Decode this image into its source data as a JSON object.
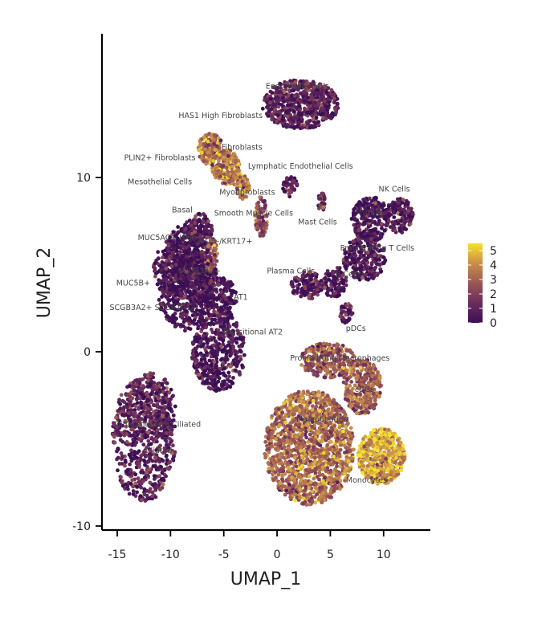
{
  "chart_data": {
    "type": "scatter",
    "xlabel": "UMAP_1",
    "ylabel": "UMAP_2",
    "xlim": [
      -16.5,
      14.5
    ],
    "ylim": [
      -10.5,
      18.3
    ],
    "x_ticks": [
      -15,
      -10,
      -5,
      0,
      5,
      10
    ],
    "y_ticks": [
      -10,
      0,
      10
    ],
    "colorbar": {
      "range": [
        0,
        5.5
      ],
      "ticks": [
        0,
        1,
        2,
        3,
        4,
        5
      ]
    },
    "colors": {
      "low": "#3b0f55",
      "mid": "#b87a4e",
      "high": "#f3e22e"
    },
    "clusters": [
      {
        "name": "Ciliated",
        "label_x": -11.2,
        "label_y": -5.8,
        "cx": -12.5,
        "cy": -5.0,
        "rx": 3.0,
        "ry": 3.6,
        "value": 0.9,
        "n": 600
      },
      {
        "name": "Differentiating Ciliated",
        "label_x": -11.2,
        "label_y": -4.3,
        "cx": -11.8,
        "cy": -3.2,
        "rx": 2.3,
        "ry": 2.0,
        "value": 0.9,
        "n": 250
      },
      {
        "name": "Transitional AT2",
        "label_x": -2.3,
        "label_y": 1.0,
        "cx": -5.5,
        "cy": 0.0,
        "rx": 2.5,
        "ry": 2.3,
        "value": 0.3,
        "n": 450
      },
      {
        "name": "AT1",
        "label_x": -3.4,
        "label_y": 3.0,
        "cx": -5.3,
        "cy": 3.0,
        "rx": 1.5,
        "ry": 1.3,
        "value": 0.3,
        "n": 180
      },
      {
        "name": "SCGB3A2+ SCGB1A1+",
        "label_x": -11.6,
        "label_y": 2.4,
        "cx": -8.5,
        "cy": 3.2,
        "rx": 2.6,
        "ry": 2.0,
        "value": 0.3,
        "n": 400
      },
      {
        "name": "SCGB3A2+",
        "label_x": -7.3,
        "label_y": 4.5,
        "cx": -7.3,
        "cy": 4.5,
        "rx": 1.6,
        "ry": 1.3,
        "value": 0.4,
        "n": 220
      },
      {
        "name": "MUC5B+",
        "label_x": -13.5,
        "label_y": 3.8,
        "cx": -9.8,
        "cy": 4.8,
        "rx": 1.8,
        "ry": 1.6,
        "value": 0.3,
        "n": 260
      },
      {
        "name": "MUC5AC+ High",
        "label_x": -10.3,
        "label_y": 6.4,
        "cx": -8.5,
        "cy": 6.0,
        "rx": 1.8,
        "ry": 1.3,
        "value": 0.4,
        "n": 220
      },
      {
        "name": "Basal",
        "label_x": -8.9,
        "label_y": 8.0,
        "cx": -7.4,
        "cy": 7.0,
        "rx": 1.3,
        "ry": 1.0,
        "value": 0.5,
        "n": 140
      },
      {
        "name": "KRT5-/KRT17+",
        "label_x": -4.9,
        "label_y": 6.2,
        "cx": -6.2,
        "cy": 5.6,
        "rx": 0.6,
        "ry": 1.0,
        "value": 2.5,
        "n": 80
      },
      {
        "name": "PLIN2+ Fibroblasts",
        "label_x": -11.0,
        "label_y": 11.0,
        "cx": -6.5,
        "cy": 11.6,
        "rx": 0.9,
        "ry": 0.9,
        "value": 3.2,
        "n": 110
      },
      {
        "name": "HAS1 High Fibroblasts",
        "label_x": -5.3,
        "label_y": 13.4,
        "cx": -6.0,
        "cy": 11.8,
        "rx": 0.8,
        "ry": 0.8,
        "value": 3.0,
        "n": 70
      },
      {
        "name": "Fibroblasts",
        "label_x": -3.3,
        "label_y": 11.6,
        "cx": -4.8,
        "cy": 10.6,
        "rx": 1.3,
        "ry": 1.0,
        "value": 3.6,
        "n": 200
      },
      {
        "name": "Mesothelial Cells",
        "label_x": -11.0,
        "label_y": 9.6,
        "cx": -3.8,
        "cy": 10.0,
        "rx": 0.5,
        "ry": 0.5,
        "value": 3.5,
        "n": 40
      },
      {
        "name": "Myofibroblasts",
        "label_x": -2.8,
        "label_y": 9.0,
        "cx": -3.2,
        "cy": 9.4,
        "rx": 0.6,
        "ry": 0.7,
        "value": 3.4,
        "n": 60
      },
      {
        "name": "Smooth Muscle Cells",
        "label_x": -2.2,
        "label_y": 7.8,
        "cx": -1.5,
        "cy": 7.7,
        "rx": 0.6,
        "ry": 1.2,
        "value": 2.2,
        "n": 80
      },
      {
        "name": "Endothelial Cells",
        "label_x": 1.9,
        "label_y": 15.1,
        "cx": 2.2,
        "cy": 14.2,
        "rx": 3.6,
        "ry": 1.4,
        "value": 0.9,
        "n": 650
      },
      {
        "name": "Lymphatic Endothelial Cells",
        "label_x": 2.2,
        "label_y": 10.5,
        "cx": 1.2,
        "cy": 9.5,
        "rx": 0.7,
        "ry": 0.6,
        "value": 0.5,
        "n": 45
      },
      {
        "name": "Mast Cells",
        "label_x": 3.8,
        "label_y": 7.3,
        "cx": 4.2,
        "cy": 8.6,
        "rx": 0.4,
        "ry": 0.5,
        "value": 1.5,
        "n": 30
      },
      {
        "name": "NK Cells",
        "label_x": 11.0,
        "label_y": 9.2,
        "cx": 11.5,
        "cy": 7.8,
        "rx": 1.3,
        "ry": 1.0,
        "value": 0.5,
        "n": 140
      },
      {
        "name": "T Cells",
        "label_x": 8.8,
        "label_y": 7.8,
        "cx": 8.8,
        "cy": 7.6,
        "rx": 1.8,
        "ry": 1.3,
        "value": 0.4,
        "n": 250
      },
      {
        "name": "Proliferating T Cells",
        "label_x": 9.4,
        "label_y": 5.8,
        "cx": 8.2,
        "cy": 5.4,
        "rx": 2.0,
        "ry": 1.3,
        "value": 0.4,
        "n": 240
      },
      {
        "name": "Plasma Cells",
        "label_x": 1.3,
        "label_y": 4.5,
        "cx": 2.8,
        "cy": 3.8,
        "rx": 1.5,
        "ry": 0.8,
        "value": 0.4,
        "n": 130
      },
      {
        "name": "B Cells",
        "label_x": 6.7,
        "label_y": 4.3,
        "cx": 5.4,
        "cy": 4.0,
        "rx": 1.2,
        "ry": 0.9,
        "value": 0.4,
        "n": 100
      },
      {
        "name": "pDCs",
        "label_x": 7.4,
        "label_y": 1.2,
        "cx": 6.5,
        "cy": 2.2,
        "rx": 0.6,
        "ry": 0.6,
        "value": 0.7,
        "n": 40
      },
      {
        "name": "Proliferating Macrophages",
        "label_x": 5.9,
        "label_y": -0.5,
        "cx": 4.8,
        "cy": -0.5,
        "rx": 2.6,
        "ry": 1.0,
        "value": 2.6,
        "n": 260
      },
      {
        "name": "cDCs",
        "label_x": 8.2,
        "label_y": -2.3,
        "cx": 8.0,
        "cy": -2.0,
        "rx": 1.8,
        "ry": 1.6,
        "value": 3.0,
        "n": 300
      },
      {
        "name": "Macrophages",
        "label_x": 4.2,
        "label_y": -4.0,
        "cx": 3.0,
        "cy": -5.5,
        "rx": 4.2,
        "ry": 3.3,
        "value": 3.2,
        "n": 1400
      },
      {
        "name": "Monocytes",
        "label_x": 8.4,
        "label_y": -7.5,
        "cx": 9.8,
        "cy": -6.0,
        "rx": 2.2,
        "ry": 1.6,
        "value": 4.5,
        "n": 550
      }
    ]
  }
}
